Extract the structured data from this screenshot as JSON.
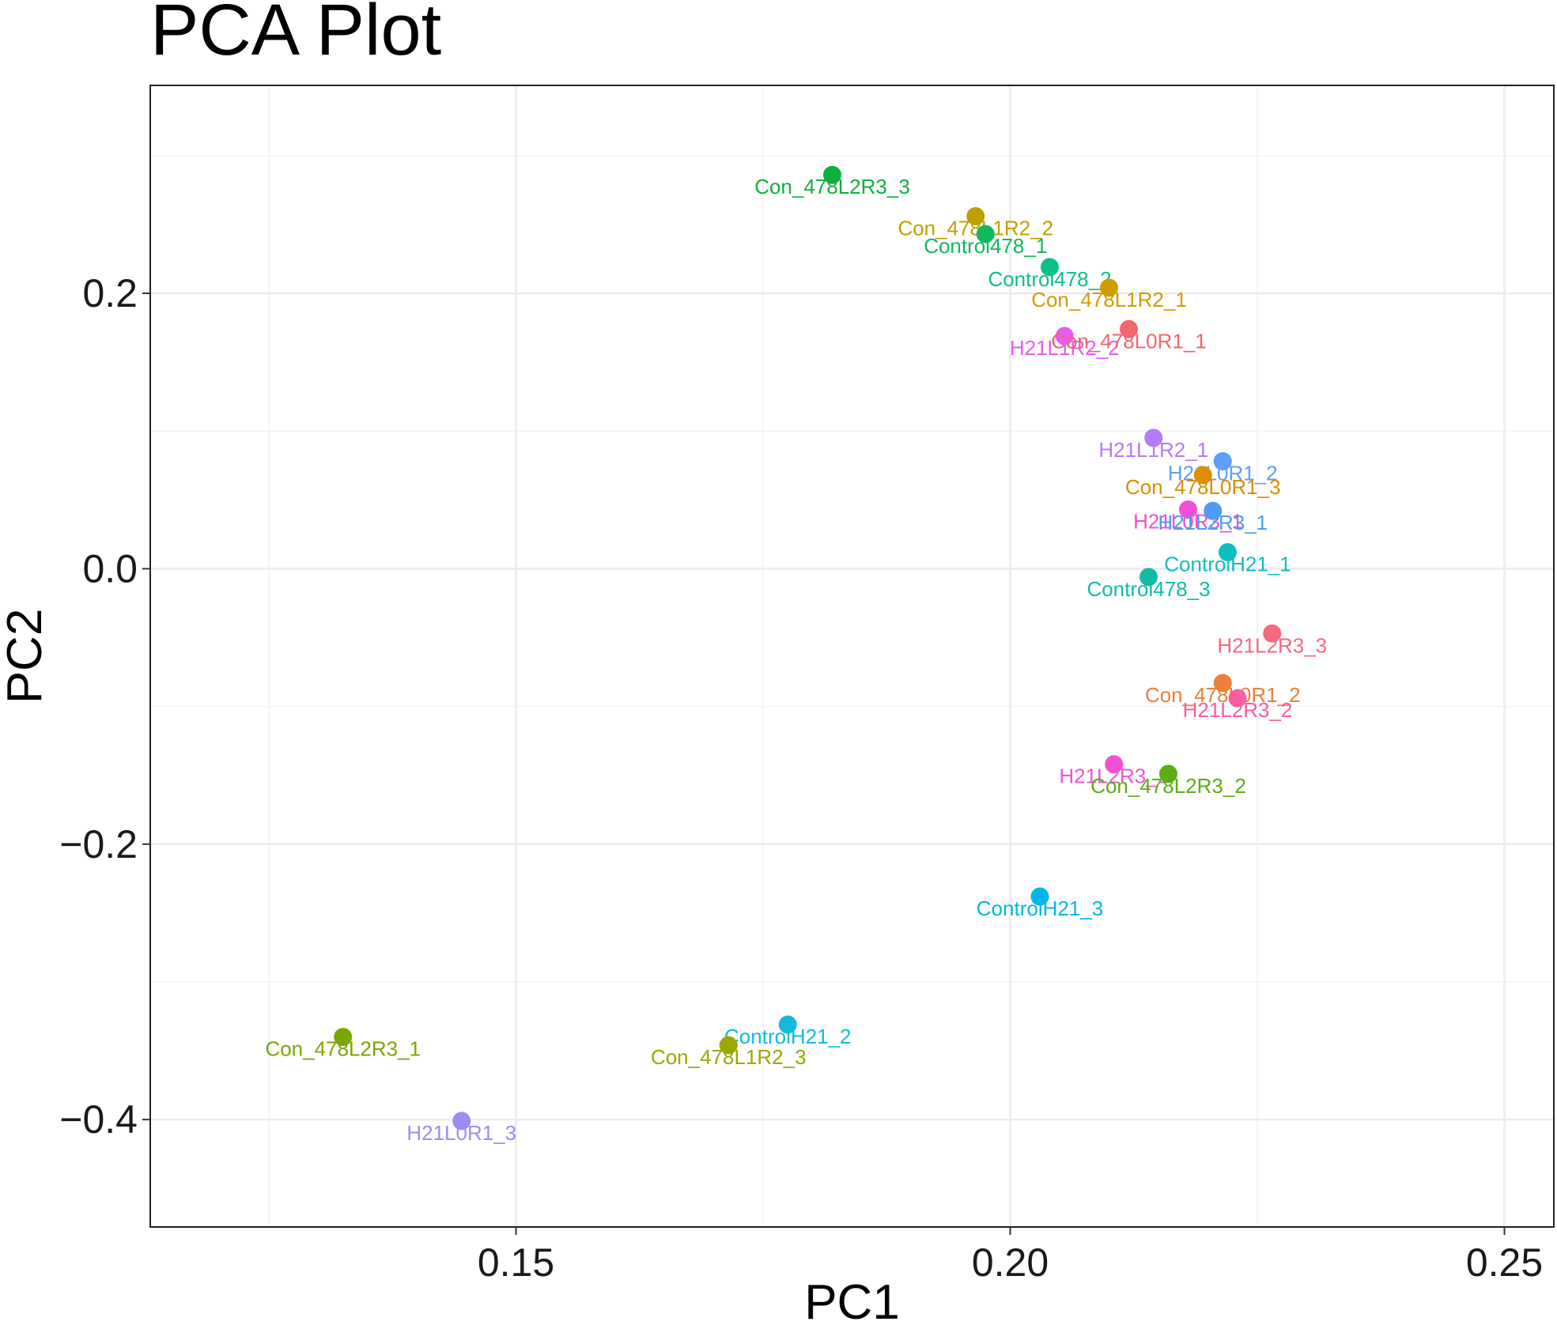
{
  "chart_data": {
    "type": "scatter",
    "title": "PCA Plot",
    "xlabel": "PC1",
    "ylabel": "PC2",
    "xlim": [
      0.113,
      0.255
    ],
    "ylim": [
      -0.478,
      0.351
    ],
    "xticks": [
      0.15,
      0.2,
      0.25
    ],
    "xtick_labels": [
      "0.15",
      "0.20",
      "0.25"
    ],
    "yticks": [
      -0.4,
      -0.2,
      0.0,
      0.2
    ],
    "ytick_labels": [
      "−0.4",
      "−0.2",
      "0.0",
      "0.2"
    ],
    "grid": true,
    "legend": "none",
    "points": [
      {
        "label": "Con_478L2R3_3",
        "x": 0.182,
        "y": 0.286,
        "color": "#0EB03C"
      },
      {
        "label": "Con_478L1R2_2",
        "x": 0.1965,
        "y": 0.256,
        "color": "#C0A000"
      },
      {
        "label": "Control478_1",
        "x": 0.1975,
        "y": 0.243,
        "color": "#10BA5A"
      },
      {
        "label": "Control478_2",
        "x": 0.204,
        "y": 0.219,
        "color": "#0CBF8A"
      },
      {
        "label": "Con_478L1R2_1",
        "x": 0.21,
        "y": 0.204,
        "color": "#D09C00"
      },
      {
        "label": "H21L1R2_2",
        "x": 0.2055,
        "y": 0.169,
        "color": "#E65CF0"
      },
      {
        "label": "Con_478L0R1_1",
        "x": 0.212,
        "y": 0.174,
        "color": "#F2646E"
      },
      {
        "label": "H21L1R2_1",
        "x": 0.2145,
        "y": 0.095,
        "color": "#B47BFA"
      },
      {
        "label": "H21L0R1_2",
        "x": 0.2215,
        "y": 0.078,
        "color": "#5C9EF8"
      },
      {
        "label": "Con_478L0R1_3",
        "x": 0.2195,
        "y": 0.068,
        "color": "#DE8C00"
      },
      {
        "label": "H21L0R3_1",
        "x": 0.218,
        "y": 0.043,
        "color": "#F04FD8"
      },
      {
        "label": "H21L2R3_1",
        "x": 0.2205,
        "y": 0.042,
        "color": "#4C9DF0"
      },
      {
        "label": "ControlH21_1",
        "x": 0.222,
        "y": 0.012,
        "color": "#10BFBF"
      },
      {
        "label": "Control478_3",
        "x": 0.214,
        "y": -0.006,
        "color": "#10BCA6"
      },
      {
        "label": "H21L2R3_3",
        "x": 0.2265,
        "y": -0.047,
        "color": "#F36A7E"
      },
      {
        "label": "Con_478L0R1_2",
        "x": 0.2215,
        "y": -0.083,
        "color": "#EE7E3A"
      },
      {
        "label": "H21L2R3_2",
        "x": 0.223,
        "y": -0.094,
        "color": "#F75F9E"
      },
      {
        "label": "H21L2R3_1",
        "x": 0.2105,
        "y": -0.142,
        "color": "#F251D6"
      },
      {
        "label": "Con_478L2R3_2",
        "x": 0.216,
        "y": -0.149,
        "color": "#5AAE13"
      },
      {
        "label": "ControlH21_3",
        "x": 0.203,
        "y": -0.238,
        "color": "#05B5E8"
      },
      {
        "label": "ControlH21_2",
        "x": 0.1775,
        "y": -0.331,
        "color": "#12BAE0"
      },
      {
        "label": "Con_478L2R3_1",
        "x": 0.1325,
        "y": -0.34,
        "color": "#7AA600"
      },
      {
        "label": "Con_478L1R2_3",
        "x": 0.1715,
        "y": -0.346,
        "color": "#9CA800"
      },
      {
        "label": "H21L0R1_3",
        "x": 0.1445,
        "y": -0.401,
        "color": "#9D8CF2"
      }
    ]
  }
}
